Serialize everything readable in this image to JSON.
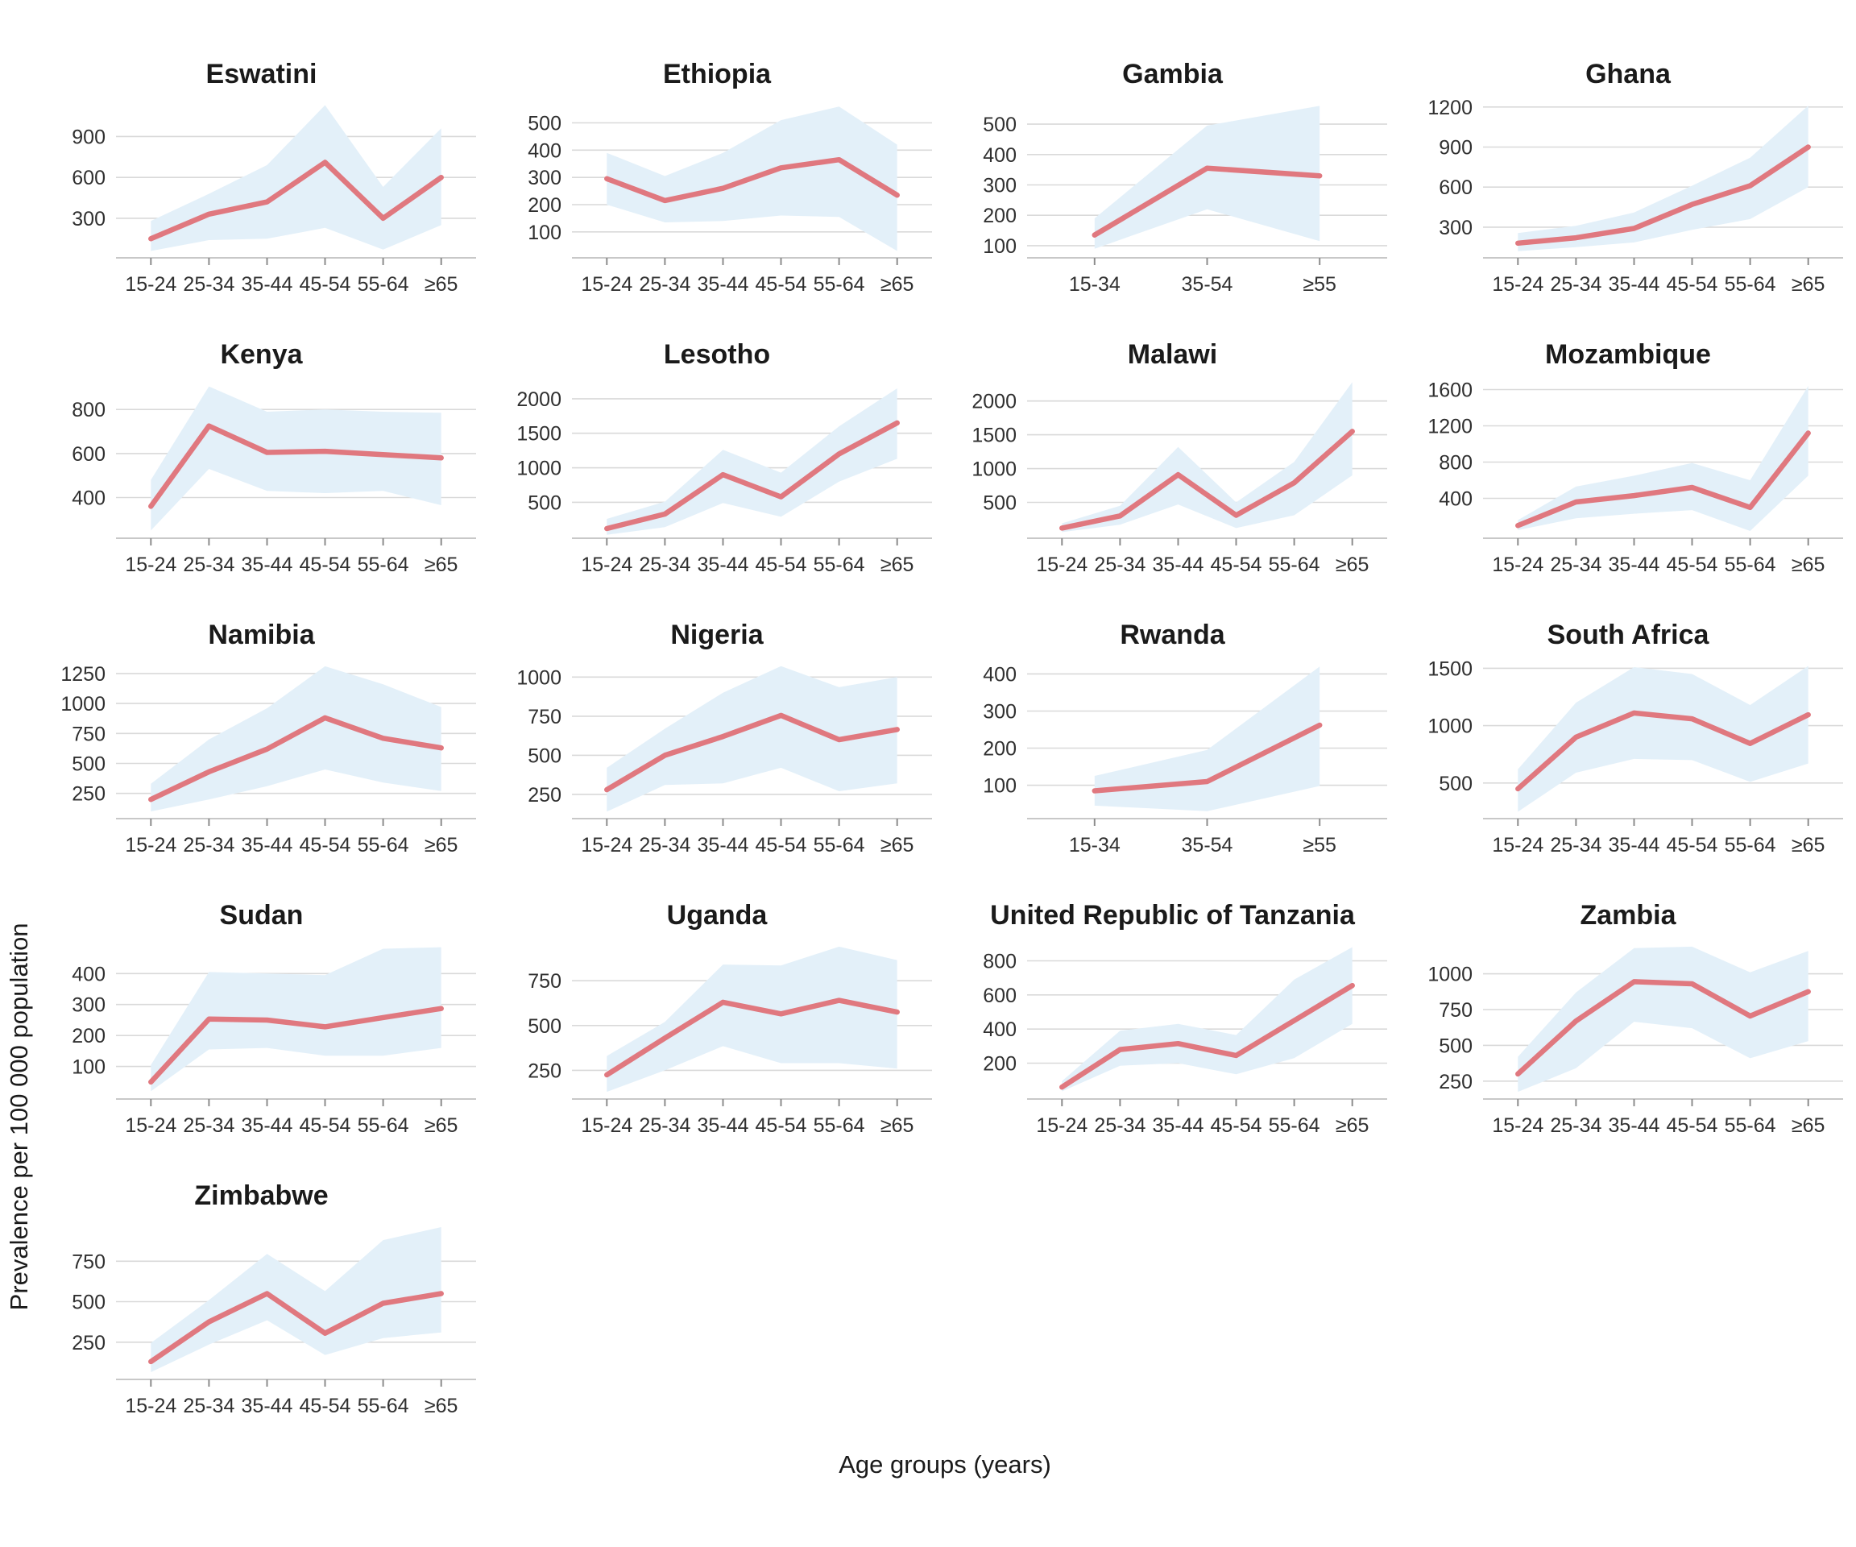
{
  "figure": {
    "ylabel": "Prevalence per 100 000 population",
    "xlabel": "Age groups (years)",
    "grid": "horizontal-major",
    "legend": "none",
    "colors": {
      "line": "#e0787f",
      "band": "#e3f0f9",
      "grid": "#d9d9d9",
      "axis": "#c8c8c8",
      "tick": "#8c8c8c",
      "text": "#303030",
      "title": "#1a1a1a"
    }
  },
  "chart_data": [
    {
      "type": "line",
      "title": "Eswatini",
      "categories": [
        "15-24",
        "25-34",
        "35-44",
        "45-54",
        "55-64",
        "≥65"
      ],
      "values": [
        150,
        330,
        420,
        710,
        300,
        600
      ],
      "lower": [
        60,
        140,
        150,
        230,
        70,
        250
      ],
      "upper": [
        280,
        480,
        690,
        1130,
        530,
        960
      ],
      "yticks": [
        300,
        600,
        900
      ],
      "ylim": [
        10,
        1180
      ]
    },
    {
      "type": "line",
      "title": "Ethiopia",
      "categories": [
        "15-24",
        "25-34",
        "35-44",
        "45-54",
        "55-64",
        "≥65"
      ],
      "values": [
        295,
        215,
        260,
        335,
        365,
        235
      ],
      "lower": [
        200,
        135,
        140,
        160,
        155,
        30
      ],
      "upper": [
        390,
        305,
        390,
        510,
        560,
        420
      ],
      "yticks": [
        100,
        200,
        300,
        400,
        500
      ],
      "ylim": [
        5,
        590
      ]
    },
    {
      "type": "line",
      "title": "Gambia",
      "categories": [
        "15-34",
        "35-54",
        "≥55"
      ],
      "values": [
        135,
        355,
        330
      ],
      "lower": [
        90,
        220,
        115
      ],
      "upper": [
        190,
        495,
        560
      ],
      "yticks": [
        100,
        200,
        300,
        400,
        500
      ],
      "ylim": [
        60,
        585
      ]
    },
    {
      "type": "line",
      "title": "Ghana",
      "categories": [
        "15-24",
        "25-34",
        "35-44",
        "45-54",
        "55-64",
        "≥65"
      ],
      "values": [
        180,
        220,
        290,
        470,
        610,
        900
      ],
      "lower": [
        120,
        150,
        185,
        280,
        360,
        600
      ],
      "upper": [
        255,
        310,
        410,
        610,
        820,
        1210
      ],
      "yticks": [
        300,
        600,
        900,
        1200
      ],
      "ylim": [
        70,
        1265
      ]
    },
    {
      "type": "line",
      "title": "Kenya",
      "categories": [
        "15-24",
        "25-34",
        "35-44",
        "45-54",
        "55-64",
        "≥65"
      ],
      "values": [
        360,
        725,
        605,
        610,
        595,
        580
      ],
      "lower": [
        250,
        530,
        430,
        420,
        430,
        365
      ],
      "upper": [
        480,
        905,
        790,
        800,
        790,
        785
      ],
      "yticks": [
        400,
        600,
        800
      ],
      "ylim": [
        215,
        940
      ]
    },
    {
      "type": "line",
      "title": "Lesotho",
      "categories": [
        "15-24",
        "25-34",
        "35-44",
        "45-54",
        "55-64",
        "≥65"
      ],
      "values": [
        120,
        330,
        900,
        580,
        1200,
        1650
      ],
      "lower": [
        30,
        140,
        490,
        290,
        800,
        1130
      ],
      "upper": [
        260,
        510,
        1260,
        930,
        1600,
        2150
      ],
      "yticks": [
        500,
        1000,
        1500,
        2000
      ],
      "ylim": [
        -20,
        2290
      ]
    },
    {
      "type": "line",
      "title": "Malawi",
      "categories": [
        "15-24",
        "25-34",
        "35-44",
        "45-54",
        "55-64",
        "≥65"
      ],
      "values": [
        120,
        300,
        910,
        310,
        790,
        1550
      ],
      "lower": [
        60,
        170,
        470,
        120,
        310,
        900
      ],
      "upper": [
        190,
        450,
        1320,
        500,
        1100,
        2280
      ],
      "yticks": [
        500,
        1000,
        1500,
        2000
      ],
      "ylim": [
        -30,
        2330
      ]
    },
    {
      "type": "line",
      "title": "Mozambique",
      "categories": [
        "15-24",
        "25-34",
        "35-44",
        "45-54",
        "55-64",
        "≥65"
      ],
      "values": [
        100,
        360,
        430,
        520,
        300,
        1120
      ],
      "lower": [
        50,
        180,
        230,
        270,
        40,
        650
      ],
      "upper": [
        160,
        530,
        650,
        790,
        600,
        1640
      ],
      "yticks": [
        400,
        800,
        1200,
        1600
      ],
      "ylim": [
        -40,
        1720
      ]
    },
    {
      "type": "line",
      "title": "Namibia",
      "categories": [
        "15-24",
        "25-34",
        "35-44",
        "45-54",
        "55-64",
        "≥65"
      ],
      "values": [
        200,
        430,
        620,
        880,
        710,
        630
      ],
      "lower": [
        100,
        200,
        310,
        450,
        340,
        270
      ],
      "upper": [
        330,
        700,
        960,
        1310,
        1160,
        970
      ],
      "yticks": [
        250,
        500,
        750,
        1000,
        1250
      ],
      "ylim": [
        40,
        1370
      ]
    },
    {
      "type": "line",
      "title": "Nigeria",
      "categories": [
        "15-24",
        "25-34",
        "35-44",
        "45-54",
        "55-64",
        "≥65"
      ],
      "values": [
        280,
        500,
        620,
        755,
        600,
        665
      ],
      "lower": [
        140,
        310,
        320,
        420,
        270,
        320
      ],
      "upper": [
        420,
        670,
        900,
        1070,
        935,
        1000
      ],
      "yticks": [
        250,
        500,
        750,
        1000
      ],
      "ylim": [
        95,
        1115
      ]
    },
    {
      "type": "line",
      "title": "Rwanda",
      "categories": [
        "15-34",
        "35-54",
        "≥55"
      ],
      "values": [
        85,
        110,
        262
      ],
      "lower": [
        45,
        30,
        98
      ],
      "upper": [
        125,
        195,
        420
      ],
      "yticks": [
        100,
        200,
        300,
        400
      ],
      "ylim": [
        10,
        440
      ]
    },
    {
      "type": "line",
      "title": "South Africa",
      "categories": [
        "15-24",
        "25-34",
        "35-44",
        "45-54",
        "55-64",
        "≥65"
      ],
      "values": [
        450,
        900,
        1110,
        1060,
        845,
        1095
      ],
      "lower": [
        250,
        590,
        710,
        700,
        510,
        670
      ],
      "upper": [
        620,
        1200,
        1510,
        1450,
        1180,
        1520
      ],
      "yticks": [
        500,
        1000,
        1500
      ],
      "ylim": [
        190,
        1580
      ]
    },
    {
      "type": "line",
      "title": "Sudan",
      "categories": [
        "15-24",
        "25-34",
        "35-44",
        "45-54",
        "55-64",
        "≥65"
      ],
      "values": [
        50,
        253,
        250,
        228,
        258,
        287
      ],
      "lower": [
        20,
        155,
        160,
        135,
        135,
        160
      ],
      "upper": [
        105,
        405,
        400,
        395,
        480,
        485
      ],
      "yticks": [
        100,
        200,
        300,
        400
      ],
      "ylim": [
        -5,
        510
      ]
    },
    {
      "type": "line",
      "title": "Uganda",
      "categories": [
        "15-24",
        "25-34",
        "35-44",
        "45-54",
        "55-64",
        "≥65"
      ],
      "values": [
        225,
        430,
        630,
        565,
        640,
        575
      ],
      "lower": [
        130,
        250,
        385,
        290,
        290,
        260
      ],
      "upper": [
        330,
        520,
        840,
        835,
        940,
        865
      ],
      "yticks": [
        250,
        500,
        750
      ],
      "ylim": [
        90,
        980
      ]
    },
    {
      "type": "line",
      "title": "United Republic of Tanzania",
      "categories": [
        "15-24",
        "25-34",
        "35-44",
        "45-54",
        "55-64",
        "≥65"
      ],
      "values": [
        60,
        280,
        315,
        245,
        450,
        655
      ],
      "lower": [
        35,
        185,
        200,
        135,
        230,
        430
      ],
      "upper": [
        95,
        390,
        430,
        365,
        690,
        880
      ],
      "yticks": [
        200,
        400,
        600,
        800
      ],
      "ylim": [
        -10,
        925
      ]
    },
    {
      "type": "line",
      "title": "Zambia",
      "categories": [
        "15-24",
        "25-34",
        "35-44",
        "45-54",
        "55-64",
        "≥65"
      ],
      "values": [
        300,
        670,
        945,
        930,
        705,
        875
      ],
      "lower": [
        175,
        340,
        665,
        620,
        410,
        530
      ],
      "upper": [
        420,
        870,
        1180,
        1190,
        1010,
        1160
      ],
      "yticks": [
        250,
        500,
        750,
        1000
      ],
      "ylim": [
        125,
        1240
      ]
    },
    {
      "type": "line",
      "title": "Zimbabwe",
      "categories": [
        "15-24",
        "25-34",
        "35-44",
        "45-54",
        "55-64",
        "≥65"
      ],
      "values": [
        130,
        375,
        550,
        305,
        490,
        550
      ],
      "lower": [
        65,
        235,
        385,
        170,
        275,
        310
      ],
      "upper": [
        245,
        510,
        795,
        565,
        880,
        960
      ],
      "yticks": [
        250,
        500,
        750
      ],
      "ylim": [
        20,
        1005
      ]
    }
  ]
}
